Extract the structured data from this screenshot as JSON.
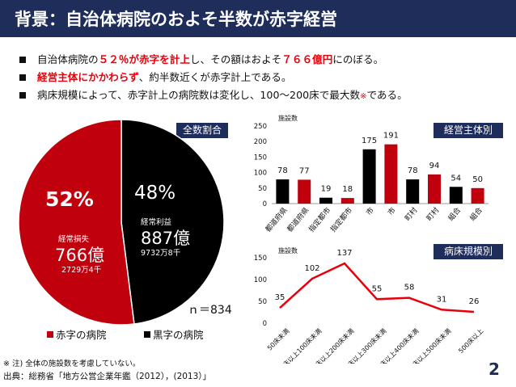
{
  "title": "背景：自治体病院のおよそ半数が赤字経営",
  "bullets": [
    {
      "pre": "自治体病院の",
      "hl": "５２％が赤字を計上",
      "post": "し、その額はおよそ",
      "hl2": "７６６億円",
      "post2": "にのぼる。"
    },
    {
      "hl": "経営主体にかかわらず",
      "post": "、約半数近くが赤字計上である。"
    },
    {
      "pre": "病床規模によって、赤字計上の病院数は変化し、100〜200床で最大数",
      "note": "※",
      "post": "である。"
    }
  ],
  "badges": {
    "pie": "全数割合",
    "bar": "経営主体別",
    "line": "病床規模別"
  },
  "pie": {
    "loss_pct": "52%",
    "profit_pct": "48%",
    "loss_label": "経常損失",
    "loss_amount": "766億",
    "loss_sub": "2729万4千",
    "profit_label": "経常利益",
    "profit_amount": "887億",
    "profit_sub": "9732万8千",
    "n_label": "ｎ＝834",
    "legend": [
      "赤字の病院",
      "黒字の病院"
    ]
  },
  "footnote": "※ 注) 全体の施設数を考慮していない。",
  "source": "出典：総務省「地方公営企業年鑑（2012），(2013）」",
  "page_number": "2",
  "colors": {
    "navy": "#1f2d5a",
    "red": "#c0000d",
    "black": "#000000",
    "highlight": "#e8000b"
  },
  "chart_data": [
    {
      "type": "pie",
      "categories": [
        "赤字の病院",
        "黒字の病院"
      ],
      "values": [
        52,
        48
      ]
    },
    {
      "type": "bar",
      "ylabel": "施設数",
      "ylim": [
        0,
        250
      ],
      "yticks": [
        0,
        50,
        100,
        150,
        200,
        250
      ],
      "categories": [
        "都道府県",
        "都道府県",
        "指定都市",
        "指定都市",
        "市",
        "市",
        "町村",
        "町村",
        "組合",
        "組合"
      ],
      "values": [
        78,
        77,
        19,
        18,
        175,
        191,
        78,
        94,
        54,
        50
      ],
      "bar_colors": [
        "#000000",
        "#c0000d",
        "#000000",
        "#c0000d",
        "#000000",
        "#c0000d",
        "#000000",
        "#c0000d",
        "#000000",
        "#c0000d"
      ]
    },
    {
      "type": "line",
      "ylabel": "施設数",
      "ylim": [
        0,
        150
      ],
      "yticks": [
        0,
        50,
        100,
        150
      ],
      "categories": [
        "50床未満",
        "50床以上100床未満",
        "100床以上200床未満",
        "200床以上300床未満",
        "300床以上400床未満",
        "400床以上500床未満",
        "500床以上"
      ],
      "values": [
        35,
        102,
        137,
        55,
        58,
        31,
        26
      ],
      "color": "#e8000b"
    }
  ]
}
